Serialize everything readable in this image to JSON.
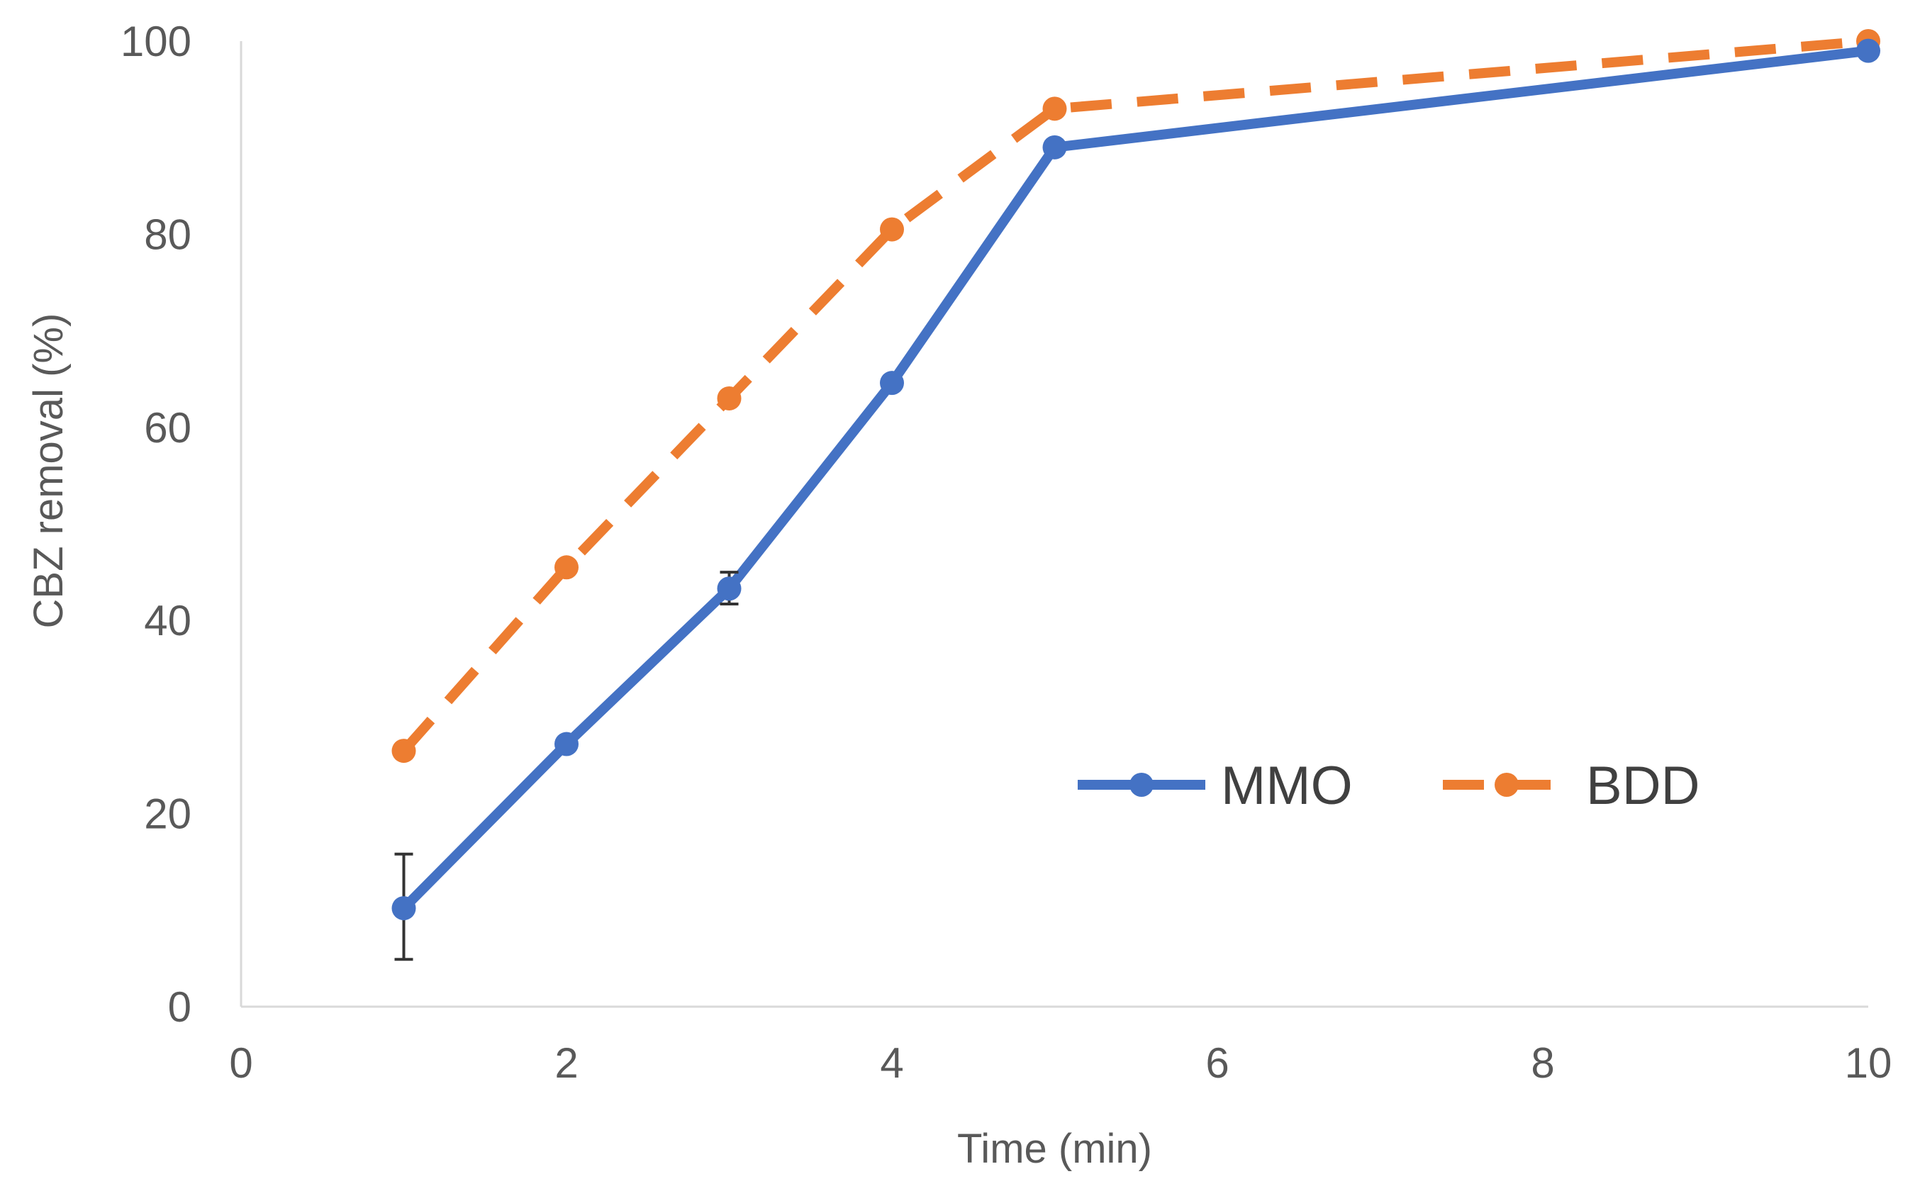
{
  "chart_data": {
    "type": "line",
    "title": "",
    "xlabel": "Time (min)",
    "ylabel": "CBZ removal (%)",
    "xlim": [
      0,
      10
    ],
    "ylim": [
      0,
      100
    ],
    "xticks": [
      0,
      2,
      4,
      6,
      8,
      10
    ],
    "yticks": [
      0,
      20,
      40,
      60,
      80,
      100
    ],
    "grid": false,
    "legend_position": "right-center",
    "series": [
      {
        "name": "MMO",
        "color": "#4472C4",
        "line_style": "solid",
        "points": [
          {
            "x": 1,
            "y": 10.2,
            "err_low": 4.9,
            "err_high": 15.8
          },
          {
            "x": 2,
            "y": 27.2
          },
          {
            "x": 3,
            "y": 43.3,
            "err_low": 41.7,
            "err_high": 45.0
          },
          {
            "x": 4,
            "y": 64.6
          },
          {
            "x": 5,
            "y": 89.0
          },
          {
            "x": 10,
            "y": 99.0
          }
        ]
      },
      {
        "name": "BDD",
        "color": "#ED7D31",
        "line_style": "dashed",
        "points": [
          {
            "x": 1,
            "y": 26.5
          },
          {
            "x": 2,
            "y": 45.5
          },
          {
            "x": 3,
            "y": 63.0
          },
          {
            "x": 4,
            "y": 80.5
          },
          {
            "x": 5,
            "y": 93.0
          },
          {
            "x": 10,
            "y": 100.0
          }
        ]
      }
    ]
  }
}
